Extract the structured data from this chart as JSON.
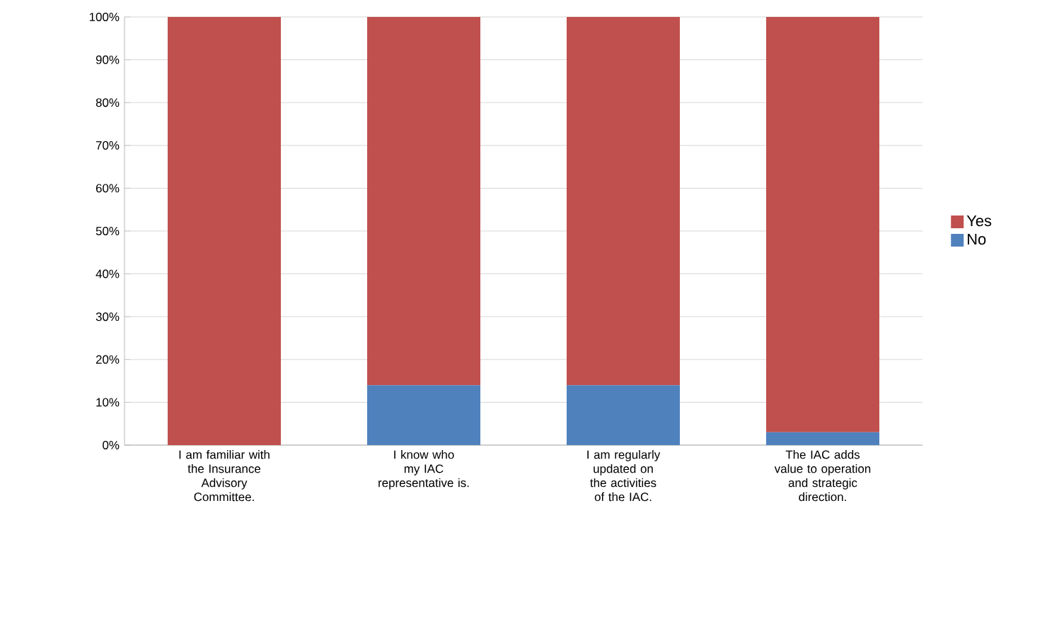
{
  "chart_data": {
    "type": "bar",
    "stacked": true,
    "categories": [
      "I am familiar with the Insurance Advisory Committee.",
      "I know who my IAC representative is.",
      "I am regularly updated on the activities of the IAC.",
      "The IAC adds value to operation and strategic direction."
    ],
    "series": [
      {
        "name": "No",
        "color": "#4f81bd",
        "values": [
          0,
          14,
          14,
          3
        ]
      },
      {
        "name": "Yes",
        "color": "#c0504d",
        "values": [
          100,
          86,
          86,
          97
        ]
      }
    ],
    "ylim": [
      0,
      100
    ],
    "yticks": [
      {
        "value": 0,
        "label": "0%"
      },
      {
        "value": 10,
        "label": "10%"
      },
      {
        "value": 20,
        "label": "20%"
      },
      {
        "value": 30,
        "label": "30%"
      },
      {
        "value": 40,
        "label": "40%"
      },
      {
        "value": 50,
        "label": "50%"
      },
      {
        "value": 60,
        "label": "60%"
      },
      {
        "value": 70,
        "label": "70%"
      },
      {
        "value": 80,
        "label": "80%"
      },
      {
        "value": 90,
        "label": "90%"
      },
      {
        "value": 100,
        "label": "100%"
      }
    ],
    "grid": "y",
    "legend": "right"
  }
}
